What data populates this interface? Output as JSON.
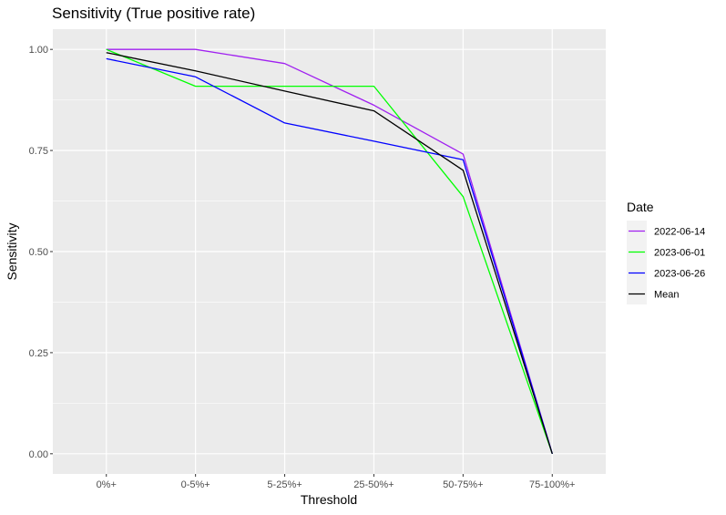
{
  "chart_data": {
    "type": "line",
    "title": "Sensitivity (True positive rate)",
    "xlabel": "Threshold",
    "ylabel": "Sensitivity",
    "categories": [
      "0%+",
      "0-5%+",
      "5-25%+",
      "25-50%+",
      "50-75%+",
      "75-100%+"
    ],
    "ylim": [
      -0.05,
      1.05
    ],
    "yticks": [
      0.0,
      0.25,
      0.5,
      0.75,
      1.0
    ],
    "ytick_labels": [
      "0.00",
      "0.25",
      "0.50",
      "0.75",
      "1.00"
    ],
    "grid": true,
    "legend_title": "Date",
    "legend_position": "right",
    "series": [
      {
        "name": "2022-06-14",
        "color": "#a020f0",
        "values": [
          1.0,
          1.0,
          0.965,
          0.862,
          0.741,
          0.0
        ]
      },
      {
        "name": "2023-06-01",
        "color": "#00ff00",
        "values": [
          1.0,
          0.909,
          0.909,
          0.909,
          0.636,
          0.0
        ]
      },
      {
        "name": "2023-06-26",
        "color": "#0000ff",
        "values": [
          0.977,
          0.932,
          0.818,
          0.773,
          0.727,
          0.0
        ]
      },
      {
        "name": "Mean",
        "color": "#000000",
        "values": [
          0.992,
          0.947,
          0.897,
          0.848,
          0.701,
          0.0
        ]
      }
    ]
  }
}
